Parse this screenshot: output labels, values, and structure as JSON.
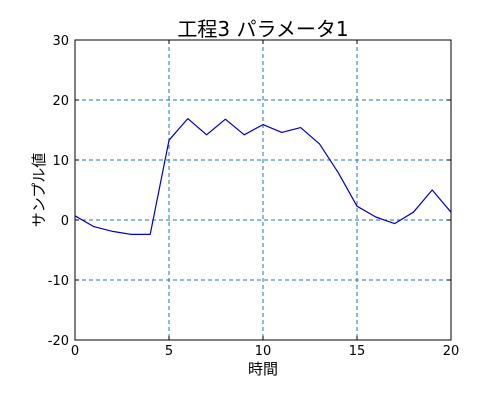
{
  "chart_data": {
    "type": "line",
    "title": "工程3 パラメータ1",
    "xlabel": "時間",
    "ylabel": "サンプル値",
    "xlim": [
      0,
      20
    ],
    "ylim": [
      -20,
      30
    ],
    "xticks": [
      0,
      5,
      10,
      15,
      20
    ],
    "yticks": [
      -20,
      -10,
      0,
      10,
      20,
      30
    ],
    "grid": true,
    "grid_style": "dashed",
    "series": [
      {
        "color": "#0000cc",
        "x": [
          0,
          1,
          2,
          3,
          4,
          5,
          6,
          7,
          8,
          9,
          10,
          11,
          12,
          13,
          14,
          15,
          16,
          17,
          18,
          19,
          20
        ],
        "y": [
          0.7,
          -1.1,
          -1.9,
          -2.4,
          -2.4,
          13.3,
          16.9,
          14.2,
          16.8,
          14.2,
          15.9,
          14.6,
          15.4,
          12.7,
          7.9,
          2.3,
          0.5,
          -0.6,
          1.3,
          5.0,
          1.3
        ]
      }
    ]
  },
  "colors": {
    "grid": "#1f77b4",
    "axis": "#000000",
    "line": "#0000cc"
  }
}
